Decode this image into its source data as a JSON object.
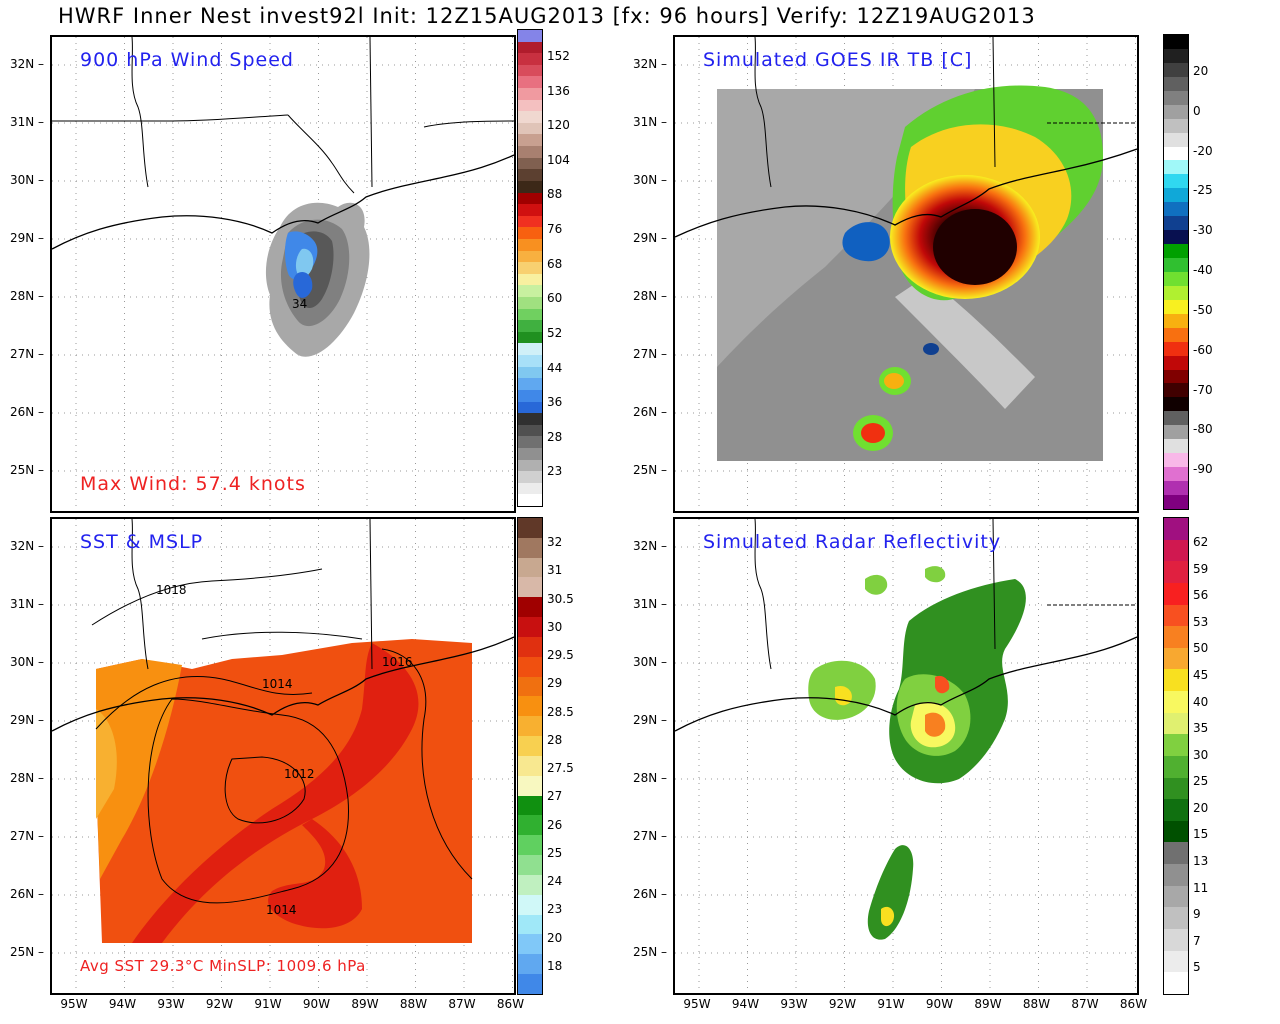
{
  "title": "HWRF Inner Nest invest92l Init: 12Z15AUG2013 [fx: 96 hours] Verify: 12Z19AUG2013",
  "lat_labels": [
    "32N",
    "31N",
    "30N",
    "29N",
    "28N",
    "27N",
    "26N",
    "25N"
  ],
  "lon_labels": [
    "95W",
    "94W",
    "93W",
    "92W",
    "91W",
    "90W",
    "89W",
    "88W",
    "87W",
    "86W"
  ],
  "panels": {
    "wind": {
      "title": "900 hPa Wind Speed",
      "note": "Max Wind:  57.4 knots",
      "contour_label": "34",
      "colorbar_labels": [
        "152",
        "136",
        "120",
        "104",
        "88",
        "76",
        "68",
        "60",
        "52",
        "44",
        "36",
        "28",
        "23"
      ],
      "colors": [
        "#8484e8",
        "#b01c2c",
        "#c83040",
        "#d84c5c",
        "#e87080",
        "#f09aa0",
        "#f4c0c0",
        "#f0d8d0",
        "#e0c4b8",
        "#c8a090",
        "#a88070",
        "#806050",
        "#5c4030",
        "#3c2818",
        "#a00000",
        "#d01010",
        "#f03020",
        "#f86010",
        "#f89020",
        "#f8b040",
        "#f8d070",
        "#f8f0a0",
        "#c8f0a0",
        "#a0e080",
        "#70d060",
        "#40b040",
        "#209020",
        "#d0f0f8",
        "#a8e0f8",
        "#80c8f0",
        "#60a8f0",
        "#4088e8",
        "#2868d8",
        "#303030",
        "#505050",
        "#707070",
        "#909090",
        "#b0b0b0",
        "#d0d0d0",
        "#ececec",
        "#ffffff"
      ]
    },
    "ir": {
      "title": "Simulated GOES IR TB [C]",
      "colorbar_labels": [
        "20",
        "0",
        "-20",
        "-25",
        "-30",
        "-40",
        "-50",
        "-60",
        "-70",
        "-80",
        "-90"
      ],
      "colors": [
        "#000000",
        "#202020",
        "#404040",
        "#606060",
        "#808080",
        "#a0a0a0",
        "#c0c0c0",
        "#e0e0e0",
        "#ffffff",
        "#a0f8f8",
        "#30d8f0",
        "#10a8d8",
        "#1070c0",
        "#104090",
        "#081050",
        "#00a000",
        "#30c030",
        "#70e030",
        "#b0f030",
        "#f8f020",
        "#f8b010",
        "#f87010",
        "#f03010",
        "#c00808",
        "#800000",
        "#400000",
        "#100000",
        "#606060",
        "#a0a0a0",
        "#e0e0e0",
        "#f8b8e8",
        "#e070d0",
        "#b030b0",
        "#800080"
      ]
    },
    "sst": {
      "title": "SST & MSLP",
      "note": "Avg SST  29.3°C  MinSLP: 1009.6 hPa",
      "isobar_labels": [
        "1018",
        "1016",
        "1014",
        "1012",
        "1014"
      ],
      "colorbar_labels": [
        "32",
        "31",
        "30.5",
        "30",
        "29.5",
        "29",
        "28.5",
        "28",
        "27.5",
        "27",
        "26",
        "25",
        "24",
        "23",
        "20",
        "18"
      ],
      "colors": [
        "#603828",
        "#a07860",
        "#c8a890",
        "#d8b8a8",
        "#a00000",
        "#c81010",
        "#e03010",
        "#f05010",
        "#f07010",
        "#f89010",
        "#f8b030",
        "#f8d050",
        "#f8e890",
        "#f8f8c0",
        "#109010",
        "#30b030",
        "#60d060",
        "#90e090",
        "#c0f0c0",
        "#d0f8f8",
        "#a0e8f8",
        "#80c8f8",
        "#60a8f0",
        "#4088e8"
      ]
    },
    "radar": {
      "title": "Simulated Radar Reflectivity",
      "colorbar_labels": [
        "62",
        "59",
        "56",
        "53",
        "50",
        "45",
        "40",
        "35",
        "30",
        "25",
        "20",
        "15",
        "13",
        "11",
        "9",
        "7",
        "5"
      ],
      "colors": [
        "#a01080",
        "#d01850",
        "#e02040",
        "#f82020",
        "#f85020",
        "#f88020",
        "#f8a830",
        "#f8e020",
        "#f8f860",
        "#e0f070",
        "#80d040",
        "#50b030",
        "#309020",
        "#107010",
        "#005000",
        "#707070",
        "#909090",
        "#a8a8a8",
        "#c0c0c0",
        "#d8d8d8",
        "#ececec",
        "#ffffff"
      ]
    }
  }
}
